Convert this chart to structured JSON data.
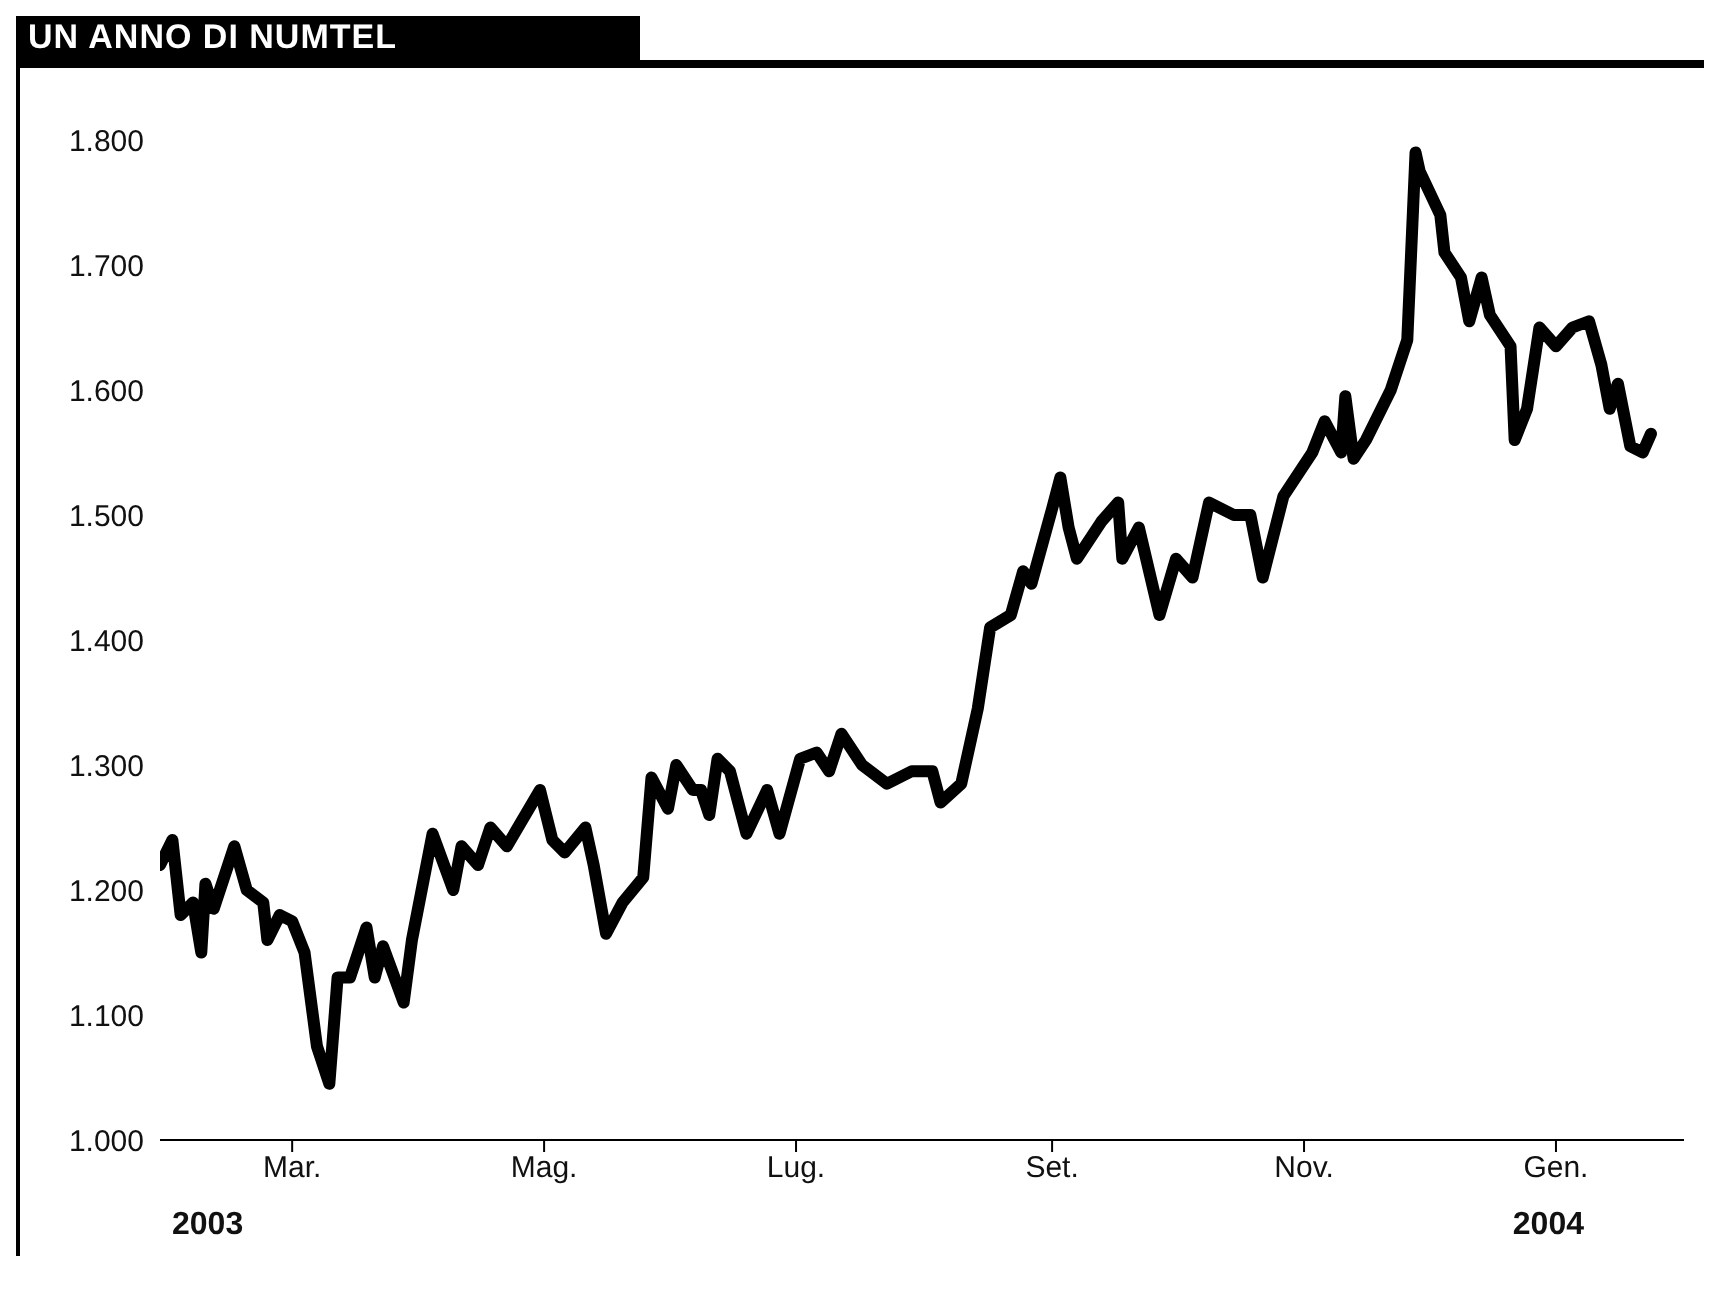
{
  "chart_data": {
    "type": "line",
    "title": "UN ANNO DI NUMTEL",
    "x": [
      "2003-01-28",
      "2003-01-31",
      "2003-02-02",
      "2003-02-05",
      "2003-02-07",
      "2003-02-08",
      "2003-02-10",
      "2003-02-15",
      "2003-02-18",
      "2003-02-22",
      "2003-02-23",
      "2003-02-26",
      "2003-03-01",
      "2003-03-04",
      "2003-03-07",
      "2003-03-10",
      "2003-03-12",
      "2003-03-15",
      "2003-03-19",
      "2003-03-21",
      "2003-03-23",
      "2003-03-28",
      "2003-03-30",
      "2003-04-04",
      "2003-04-09",
      "2003-04-11",
      "2003-04-15",
      "2003-04-18",
      "2003-04-22",
      "2003-04-30",
      "2003-05-03",
      "2003-05-06",
      "2003-05-11",
      "2003-05-13",
      "2003-05-16",
      "2003-05-20",
      "2003-05-25",
      "2003-05-27",
      "2003-05-31",
      "2003-06-02",
      "2003-06-06",
      "2003-06-08",
      "2003-06-10",
      "2003-06-12",
      "2003-06-15",
      "2003-06-19",
      "2003-06-24",
      "2003-06-27",
      "2003-07-02",
      "2003-07-06",
      "2003-07-09",
      "2003-07-12",
      "2003-07-17",
      "2003-07-23",
      "2003-07-29",
      "2003-08-03",
      "2003-08-05",
      "2003-08-10",
      "2003-08-14",
      "2003-08-17",
      "2003-08-22",
      "2003-08-25",
      "2003-08-27",
      "2003-09-01",
      "2003-09-03",
      "2003-09-05",
      "2003-09-07",
      "2003-09-13",
      "2003-09-17",
      "2003-09-18",
      "2003-09-22",
      "2003-09-27",
      "2003-10-01",
      "2003-10-05",
      "2003-10-09",
      "2003-10-15",
      "2003-10-19",
      "2003-10-22",
      "2003-10-27",
      "2003-10-31",
      "2003-11-03",
      "2003-11-06",
      "2003-11-10",
      "2003-11-11",
      "2003-11-13",
      "2003-11-16",
      "2003-11-22",
      "2003-11-26",
      "2003-11-28",
      "2003-11-29",
      "2003-12-04",
      "2003-12-05",
      "2003-12-09",
      "2003-12-11",
      "2003-12-14",
      "2003-12-16",
      "2003-12-21",
      "2003-12-22",
      "2003-12-25",
      "2003-12-28",
      "2004-01-01",
      "2004-01-05",
      "2004-01-09",
      "2004-01-12",
      "2004-01-14",
      "2004-01-16",
      "2004-01-19",
      "2004-01-22",
      "2004-01-24"
    ],
    "series": [
      {
        "color": "#000000",
        "values": [
          1220,
          1240,
          1180,
          1190,
          1150,
          1205,
          1185,
          1235,
          1200,
          1190,
          1160,
          1180,
          1175,
          1150,
          1075,
          1045,
          1130,
          1130,
          1170,
          1130,
          1155,
          1110,
          1160,
          1245,
          1200,
          1235,
          1220,
          1250,
          1235,
          1280,
          1240,
          1230,
          1250,
          1220,
          1165,
          1190,
          1210,
          1290,
          1265,
          1300,
          1280,
          1280,
          1260,
          1305,
          1295,
          1245,
          1280,
          1245,
          1305,
          1310,
          1295,
          1325,
          1300,
          1285,
          1295,
          1295,
          1270,
          1285,
          1345,
          1410,
          1420,
          1455,
          1445,
          1505,
          1530,
          1490,
          1465,
          1495,
          1510,
          1465,
          1490,
          1420,
          1465,
          1450,
          1510,
          1500,
          1500,
          1450,
          1515,
          1535,
          1550,
          1575,
          1550,
          1595,
          1545,
          1560,
          1600,
          1640,
          1790,
          1775,
          1740,
          1710,
          1690,
          1655,
          1690,
          1660,
          1635,
          1560,
          1585,
          1650,
          1635,
          1650,
          1655,
          1620,
          1585,
          1605,
          1555,
          1550,
          1565
        ]
      }
    ],
    "xlim": [
      "2003-01-28",
      "2004-02-01"
    ],
    "xticks": [
      {
        "value": "2003-03-01",
        "label": "Mar."
      },
      {
        "value": "2003-05-01",
        "label": "Mag."
      },
      {
        "value": "2003-07-01",
        "label": "Lug."
      },
      {
        "value": "2003-09-01",
        "label": "Set."
      },
      {
        "value": "2003-11-01",
        "label": "Nov."
      },
      {
        "value": "2004-01-01",
        "label": "Gen."
      }
    ],
    "ylim": [
      1000,
      1800
    ],
    "yticks": [
      {
        "value": 1000,
        "label": "1.000"
      },
      {
        "value": 1100,
        "label": "1.100"
      },
      {
        "value": 1200,
        "label": "1.200"
      },
      {
        "value": 1300,
        "label": "1.300"
      },
      {
        "value": 1400,
        "label": "1.400"
      },
      {
        "value": 1500,
        "label": "1.500"
      },
      {
        "value": 1600,
        "label": "1.600"
      },
      {
        "value": 1700,
        "label": "1.700"
      },
      {
        "value": 1800,
        "label": "1.800"
      }
    ],
    "annotations": [
      "2003",
      "2004"
    ],
    "grid": false,
    "legend": false,
    "marker": "none",
    "line_style": "solid"
  }
}
